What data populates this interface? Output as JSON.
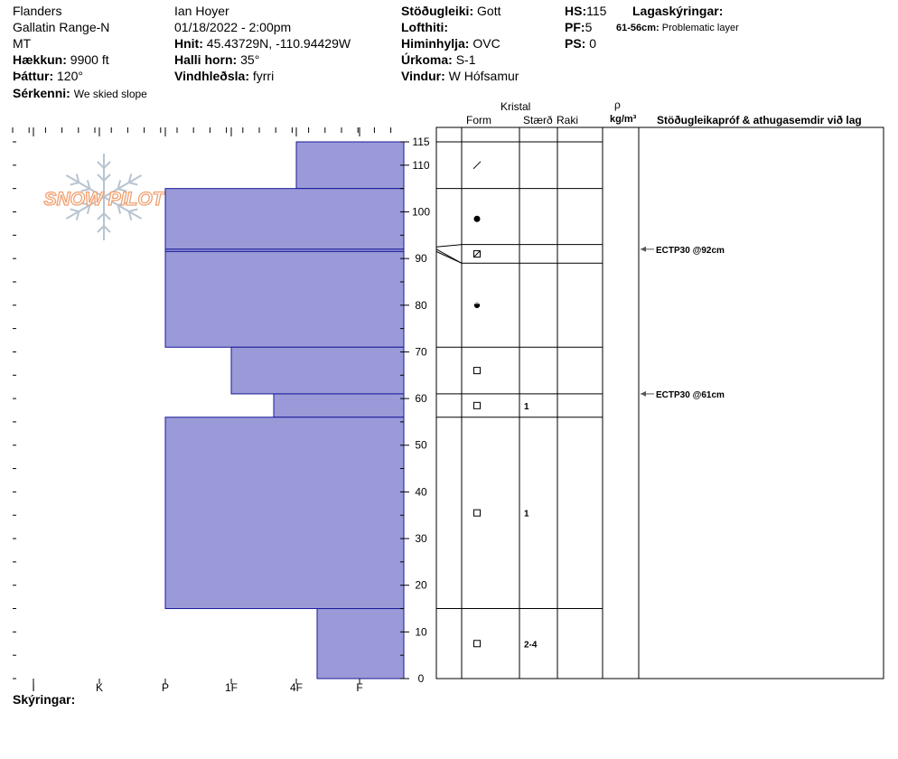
{
  "header": {
    "location": "Flanders",
    "range": "Gallatin Range-N",
    "state": "MT",
    "elevation_label": "Hækkun:",
    "elevation": "9900 ft",
    "aspect_label": "Þáttur:",
    "aspect": "120°",
    "features_label": "Sérkenni:",
    "features": "We skied slope",
    "observer": "Ian Hoyer",
    "datetime": "01/18/2022 - 2:00pm",
    "coords_label": "Hnit:",
    "coords": "45.43729N, -110.94429W",
    "slope_label": "Halli horn:",
    "slope": "35°",
    "wind_loading_label": "Vindhleðsla:",
    "wind_loading": "fyrri",
    "stability_label": "Stöðugleiki:",
    "stability": "Gott",
    "air_temp_label": "Lofthiti:",
    "air_temp": "",
    "sky_label": "Himinhylja:",
    "sky": "OVC",
    "precip_label": "Úrkoma:",
    "precip": "S-1",
    "wind_label": "Vindur:",
    "wind": "W Hófsamur",
    "hs_label": "HS:",
    "hs": "115",
    "pf_label": "PF:",
    "pf": "5",
    "ps_label": "PS:",
    "ps": "0",
    "layer_notes_label": "Lagaskýringar:",
    "layer_note_range": "61-56cm:",
    "layer_note_text": "Problematic layer"
  },
  "logo_text": "SNOW PILOT",
  "table_headers": {
    "crystal": "Kristal",
    "form": "Form",
    "size": "Stærð",
    "moisture": "Raki",
    "rho": "ρ",
    "density_unit": "kg/m³",
    "tests": "Stöðugleikapróf & athugasemdir við lag"
  },
  "legend_label": "Skýringar:",
  "colors": {
    "bar": "#9a9ad8",
    "bar_edge": "#1a1a9a",
    "logo": "#f0a070",
    "flake": "#b8c4d0"
  },
  "chart_data": {
    "type": "bar",
    "ylim": [
      0,
      115
    ],
    "y_ticks": [
      0,
      10,
      20,
      30,
      40,
      50,
      60,
      70,
      80,
      90,
      100,
      110,
      115
    ],
    "hardness_categories": [
      "I",
      "K",
      "P",
      "1F",
      "4F",
      "F"
    ],
    "layers": [
      {
        "top": 115,
        "bottom": 105,
        "hardness": "4F",
        "form": "slash",
        "size": ""
      },
      {
        "top": 105,
        "bottom": 92,
        "hardness": "P",
        "form": "dot",
        "size": ""
      },
      {
        "top": 92,
        "bottom": 91.5,
        "hardness": "P",
        "form": "",
        "size": ""
      },
      {
        "top": 91.5,
        "bottom": 71,
        "hardness": "P",
        "form": "",
        "size": ""
      },
      {
        "top": 71,
        "bottom": 61,
        "hardness": "1F",
        "form": "square",
        "size": ""
      },
      {
        "top": 61,
        "bottom": 56,
        "hardness": "4F-",
        "form": "square",
        "size": "1"
      },
      {
        "top": 56,
        "bottom": 15,
        "hardness": "P",
        "form": "square",
        "size": "1"
      },
      {
        "top": 15,
        "bottom": 0,
        "hardness": "F+",
        "form": "square",
        "size": "2-4"
      }
    ],
    "grain_rows": [
      {
        "top": 105,
        "bottom": 115,
        "form": "slash",
        "size": ""
      },
      {
        "top": 92,
        "bottom": 105,
        "form": "dot",
        "size": ""
      },
      {
        "top": 89,
        "bottom": 93,
        "form": "boxslash",
        "size": ""
      },
      {
        "top": 71,
        "bottom": 89,
        "form": "halfdot",
        "size": ""
      },
      {
        "top": 61,
        "bottom": 71,
        "form": "square",
        "size": ""
      },
      {
        "top": 56,
        "bottom": 61,
        "form": "square",
        "size": "1"
      },
      {
        "top": 15,
        "bottom": 56,
        "form": "square",
        "size": "1"
      },
      {
        "top": 0,
        "bottom": 15,
        "form": "square",
        "size": "2-4"
      }
    ],
    "tests": [
      {
        "depth": 92,
        "label": "ECTP30 @92cm"
      },
      {
        "depth": 61,
        "label": "ECTP30 @61cm"
      }
    ]
  }
}
